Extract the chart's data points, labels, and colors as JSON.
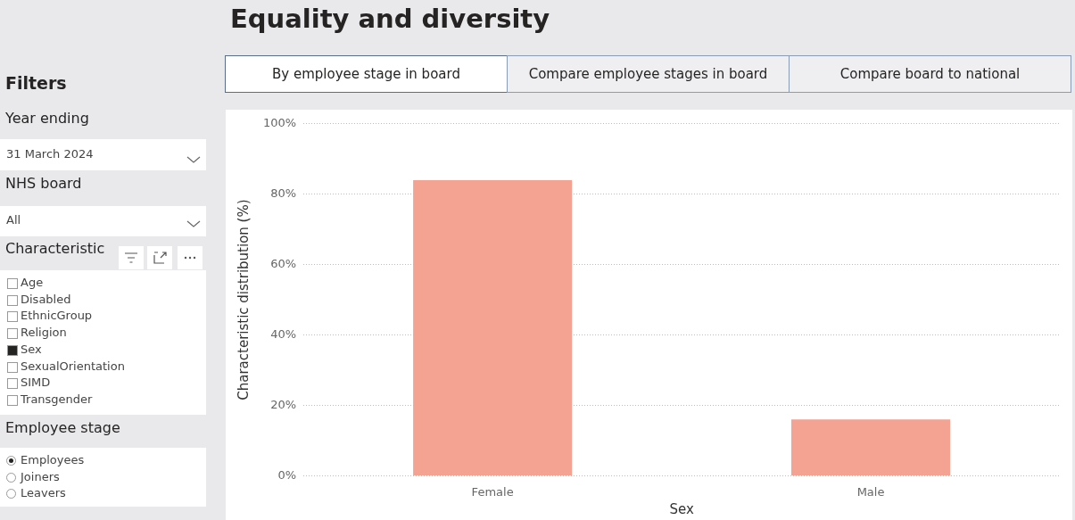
{
  "chart_data": [
    {
      "type": "other",
      "title": "Equality and diversity",
      "annotations": [
        "Filters",
        "Year ending",
        "31 March 2024",
        "NHS board",
        "All",
        "Characteristic",
        "Age",
        "Disabled",
        "EthnicGroup",
        "Religion",
        "Sex",
        "SexualOrientation",
        "SIMD",
        "Transgender",
        "Employee stage",
        "Employees",
        "Joiners",
        "Leavers",
        "By employee stage in board",
        "Compare employee stages in board",
        "Compare board to national"
      ]
    },
    {
      "type": "bar",
      "categories": [
        "Female",
        "Male"
      ],
      "values": [
        84,
        16
      ],
      "color": "#f4a292",
      "xlabel": "Sex",
      "ylabel": "Characteristic distribution (%)",
      "ylim": [
        0,
        100
      ],
      "yticks": [
        {
          "value": 0,
          "label": "0%"
        },
        {
          "value": 20,
          "label": "20%"
        },
        {
          "value": 40,
          "label": "40%"
        },
        {
          "value": 60,
          "label": "60%"
        },
        {
          "value": 80,
          "label": "80%"
        },
        {
          "value": 100,
          "label": "100%"
        }
      ],
      "grid": "y",
      "legend": false
    }
  ]
}
